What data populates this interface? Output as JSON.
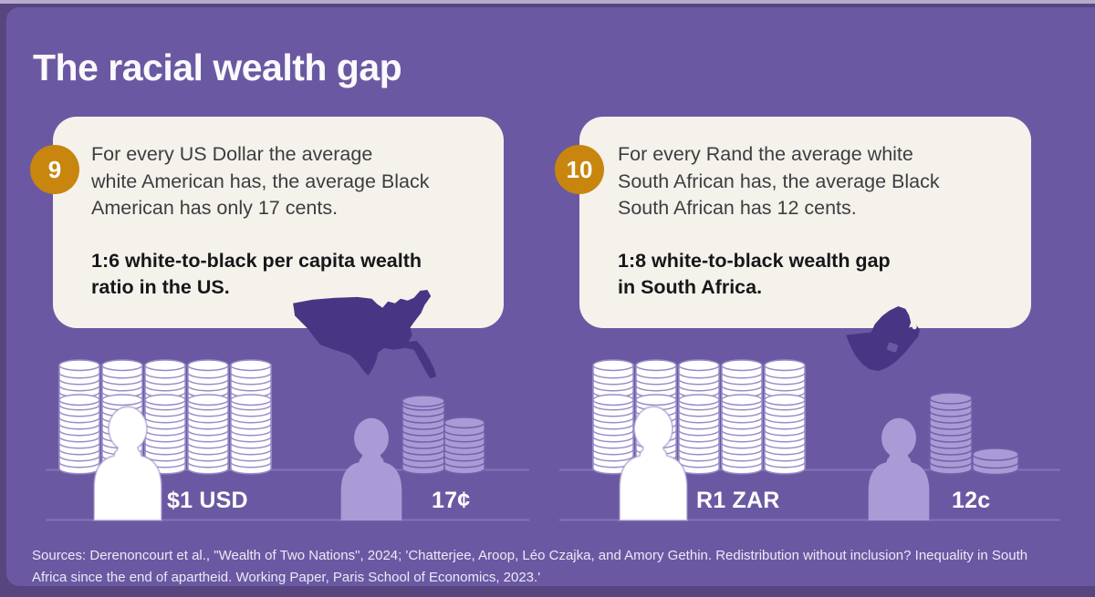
{
  "page": {
    "title": "The racial wealth gap"
  },
  "cards": [
    {
      "badge": "9",
      "body_lines": [
        "For every US Dollar the average",
        "white American has, the average Black",
        "American has only 17 cents."
      ],
      "highlight_lines": [
        "1:6 white-to-black per capita wealth",
        "ratio in the US."
      ],
      "map_icon": "united-states-map"
    },
    {
      "badge": "10",
      "body_lines": [
        "For every Rand the average white",
        "South African has, the average Black",
        "South African has 12 cents."
      ],
      "highlight_lines": [
        "1:8 white-to-black wealth gap",
        "in South Africa."
      ],
      "map_icon": "south-africa-map"
    }
  ],
  "comparisons": [
    {
      "region": "united-states",
      "rich_label": "$1 USD",
      "poor_label": "17¢",
      "rich_stack_count": 10,
      "poor_stack_count": 2
    },
    {
      "region": "south-africa",
      "rich_label": "R1 ZAR",
      "poor_label": "12c",
      "rich_stack_count": 10,
      "poor_stack_count": 2
    }
  ],
  "source_lines": [
    "Sources: Derenoncourt et al., \"Wealth of Two Nations\", 2024; 'Chatterjee, Aroop, Léo Czajka, and Amory Gethin. Redistribution without inclusion? Inequality in South",
    "Africa since the end of apartheid. Working Paper, Paris School of Economics, 2023.'"
  ],
  "colors": {
    "frame": "#57457f",
    "panel": "#6a59a2",
    "top_strip": "#b5abce",
    "card": "#f5f2ec",
    "badge": "#c8860e",
    "title_text": "#faf9fc",
    "card_text": "#3d3d40",
    "card_text_bold": "#17171a",
    "map": "#463684",
    "rich_fill": "#ffffff",
    "rich_coin_stroke": "#9a8cc9",
    "poor_fill": "#a99cd6",
    "poor_coin_stroke": "#7061aa",
    "platform_line": "#8b7dbd",
    "label_text": "#ffffff",
    "source_text": "#ede9f5"
  }
}
